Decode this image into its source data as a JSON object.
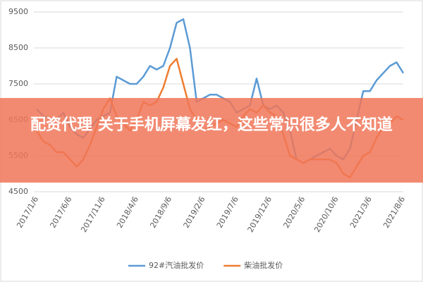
{
  "chart_data": {
    "type": "line",
    "categories": [
      "2017/1/6",
      null,
      null,
      null,
      null,
      "2017/6/6",
      null,
      null,
      null,
      null,
      "2017/11/6",
      null,
      null,
      null,
      null,
      "2018/4/6",
      null,
      null,
      null,
      null,
      "2018/9/6",
      null,
      null,
      null,
      null,
      "2019/2/6",
      null,
      null,
      null,
      null,
      "2019/7/6",
      null,
      null,
      null,
      null,
      "2019/12/6",
      null,
      null,
      null,
      null,
      "2020/5/6",
      null,
      null,
      null,
      null,
      "2020/10/6",
      null,
      null,
      null,
      null,
      "2021/3/6",
      null,
      null,
      null,
      null,
      "2021/8/6"
    ],
    "series": [
      {
        "name": "92#汽油批发价",
        "color": "#5b9bd5",
        "values": [
          6800,
          6600,
          6550,
          6500,
          6700,
          6300,
          6100,
          6000,
          6250,
          6500,
          6600,
          6700,
          7700,
          7600,
          7500,
          7500,
          7700,
          8000,
          7900,
          8000,
          8500,
          9200,
          9300,
          8500,
          7000,
          7100,
          7200,
          7200,
          7100,
          7000,
          6700,
          6800,
          6900,
          7650,
          6900,
          6800,
          6900,
          6700,
          6200,
          5400,
          5300,
          5400,
          5500,
          5600,
          5700,
          5500,
          5400,
          5700,
          6500,
          7300,
          7300,
          7600,
          7800,
          8000,
          8100,
          7800
        ]
      },
      {
        "name": "柴油批发价",
        "color": "#ed7d31",
        "values": [
          6200,
          5900,
          5800,
          5600,
          5600,
          5400,
          5200,
          5400,
          5800,
          6300,
          6800,
          7100,
          6600,
          6400,
          6200,
          6500,
          7000,
          6900,
          7000,
          7400,
          8000,
          8200,
          7500,
          6800,
          6500,
          6200,
          6300,
          6400,
          6500,
          6400,
          6300,
          6600,
          6800,
          6700,
          6900,
          6700,
          6600,
          6100,
          5500,
          5400,
          5300,
          5400,
          5400,
          5400,
          5400,
          5300,
          5000,
          4900,
          5200,
          5500,
          5600,
          6000,
          6300,
          6400,
          6600,
          6500
        ]
      }
    ],
    "ylim": [
      4500,
      9500
    ],
    "yticks": [
      4500,
      5500,
      6500,
      7500,
      8500,
      9500
    ],
    "grid": true,
    "legend": "bottom"
  },
  "banner": {
    "text": "配资代理 关于手机屏幕发红，这些常识很多人不知道"
  }
}
